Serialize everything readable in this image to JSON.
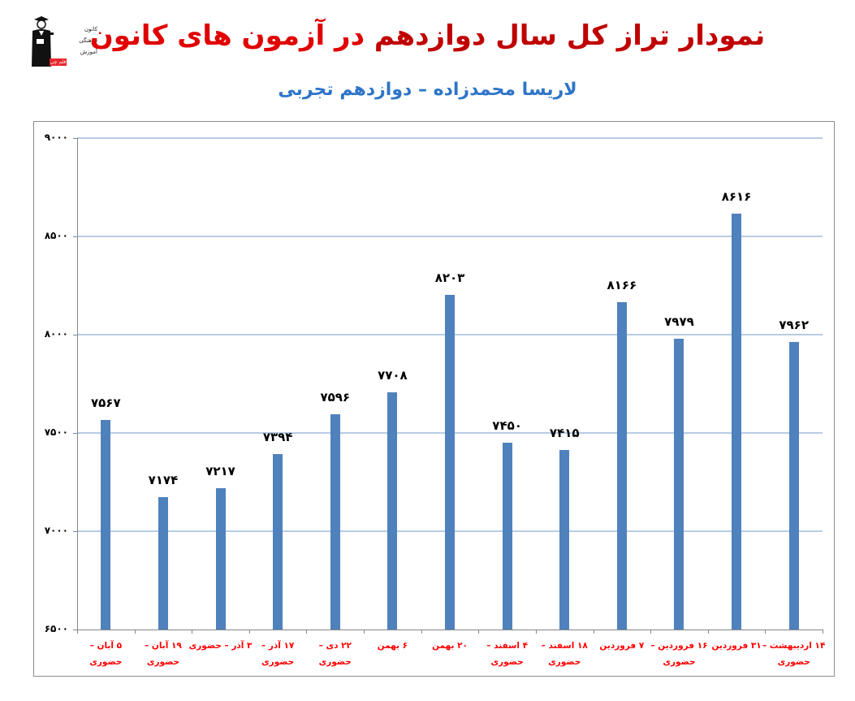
{
  "header": {
    "logo": {
      "lines": [
        "کانون",
        "فرهنگی",
        "آموزش"
      ],
      "badge": "قلم چی"
    },
    "title_part1": "نمودار تراز کل سال دوازدهم",
    "title_part2": " در آزمون های کانون",
    "subtitle": "لاریسا محمدزاده – دوازدهم تجربی"
  },
  "colors": {
    "bar": "#4f81bd",
    "gridline": "#b8cce4",
    "title": "#e00000",
    "subtitle": "#2e75c8",
    "xlabel": "#ff0000"
  },
  "chart_data": {
    "type": "bar",
    "title": "نمودار تراز کل سال دوازدهم در آزمون های کانون",
    "subtitle": "لاریسا محمدزاده – دوازدهم تجربی",
    "xlabel": "",
    "ylabel": "",
    "ylim": [
      6500,
      9000
    ],
    "yticks": [
      6500,
      7000,
      7500,
      8000,
      8500,
      9000
    ],
    "ytick_labels": [
      "۶۵۰۰",
      "۷۰۰۰",
      "۷۵۰۰",
      "۸۰۰۰",
      "۸۵۰۰",
      "۹۰۰۰"
    ],
    "grid": true,
    "legend": null,
    "categories": [
      "۵ آبان – حضوری",
      "۱۹ آبان – حضوری",
      "۳ آذر – حضوری",
      "۱۷ آذر – حضوری",
      "۲۲ دی – حضوری",
      "۶ بهمن",
      "۲۰ بهمن",
      "۴ اسفند – حضوری",
      "۱۸ اسفند – حضوری",
      "۷ فروردین",
      "۱۶ فروردین – حضوری",
      "۳۱ فروردین",
      "۱۴ اردیبهشت – حضوری"
    ],
    "values": [
      7567,
      7174,
      7217,
      7394,
      7596,
      7708,
      8203,
      7450,
      7415,
      8166,
      7979,
      8616,
      7962
    ],
    "value_labels": [
      "۷۵۶۷",
      "۷۱۷۴",
      "۷۲۱۷",
      "۷۳۹۴",
      "۷۵۹۶",
      "۷۷۰۸",
      "۸۲۰۳",
      "۷۴۵۰",
      "۷۴۱۵",
      "۸۱۶۶",
      "۷۹۷۹",
      "۸۶۱۶",
      "۷۹۶۲"
    ]
  }
}
